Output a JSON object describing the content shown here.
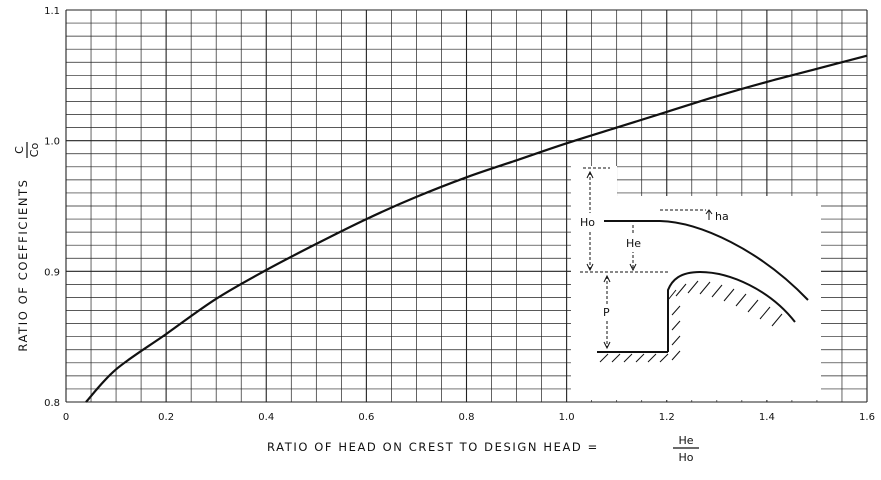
{
  "chart_data": {
    "type": "line",
    "xlabel": "RATIO OF HEAD ON CREST TO DESIGN HEAD =",
    "xlabel_fraction": {
      "numerator": "He",
      "denominator": "Ho"
    },
    "ylabel": "RATIO OF COEFFICIENTS",
    "ylabel_fraction": {
      "numerator": "C",
      "denominator": "Co"
    },
    "xlim": [
      0,
      1.6
    ],
    "ylim": [
      0.8,
      1.1
    ],
    "x_ticks": [
      "0",
      "0.2",
      "0.4",
      "0.6",
      "0.8",
      "1.0",
      "1.2",
      "1.4",
      "1.6"
    ],
    "y_ticks": [
      "0.8",
      "0.9",
      "1.0",
      "1.1"
    ],
    "grid": true,
    "series": [
      {
        "x": [
          0.04,
          0.1,
          0.2,
          0.3,
          0.4,
          0.5,
          0.6,
          0.7,
          0.8,
          0.9,
          1.0,
          1.1,
          1.2,
          1.3,
          1.4,
          1.5,
          1.6
        ],
        "y": [
          0.8,
          0.825,
          0.852,
          0.879,
          0.901,
          0.921,
          0.94,
          0.957,
          0.972,
          0.985,
          0.998,
          1.01,
          1.022,
          1.034,
          1.045,
          1.055,
          1.065
        ]
      }
    ],
    "inset_labels": {
      "Ho": "Ho",
      "He": "He",
      "ha": "ha",
      "P": "P"
    },
    "colors": {
      "line": "#111111",
      "grid": "#222222"
    }
  }
}
